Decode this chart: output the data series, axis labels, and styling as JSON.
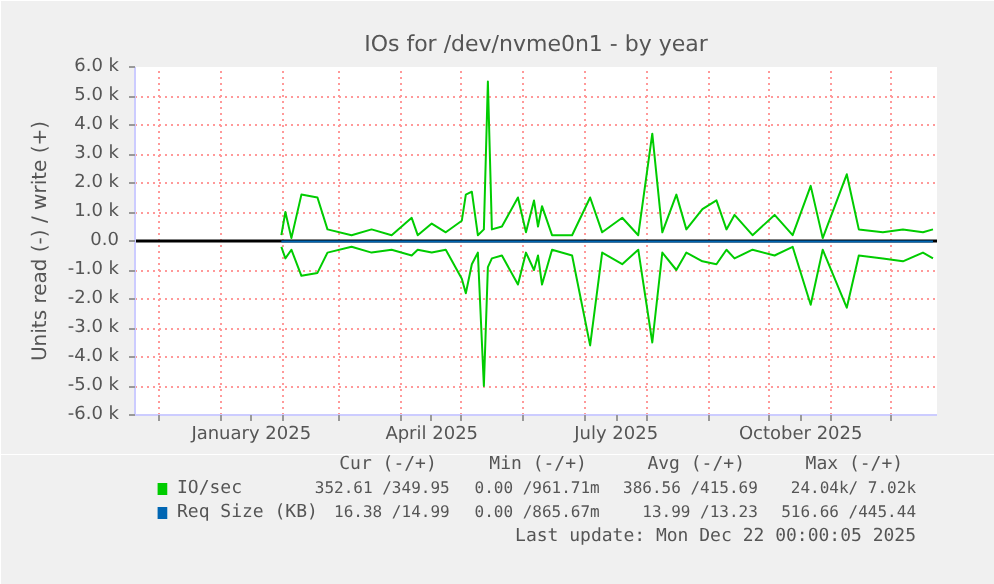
{
  "chart_data": {
    "type": "line",
    "title": "IOs for /dev/nvme0n1 - by year",
    "ylabel": "Units read (-) / write (+)",
    "xlim": [
      "2024-11-19",
      "2025-12-24"
    ],
    "xticks": [
      {
        "value": "2024-12-01",
        "label": null
      },
      {
        "value": "2025-01-01",
        "label": null
      },
      {
        "value": "2025-02-01",
        "label": null
      },
      {
        "value": "2025-03-01",
        "label": null
      },
      {
        "value": "2025-04-01",
        "label": null
      },
      {
        "value": "2025-05-01",
        "label": null
      },
      {
        "value": "2025-06-01",
        "label": null
      },
      {
        "value": "2025-07-01",
        "label": null
      },
      {
        "value": "2025-08-01",
        "label": null
      },
      {
        "value": "2025-09-01",
        "label": null
      },
      {
        "value": "2025-10-01",
        "label": null
      },
      {
        "value": "2025-11-01",
        "label": null
      },
      {
        "value": "2025-12-01",
        "label": null
      },
      {
        "value": "2025-01-16",
        "label": "January 2025"
      },
      {
        "value": "2025-04-16",
        "label": "April 2025"
      },
      {
        "value": "2025-07-17",
        "label": "July 2025"
      },
      {
        "value": "2025-10-17",
        "label": "October 2025"
      }
    ],
    "ylim": [
      -6000,
      6000
    ],
    "yticks": [
      {
        "value": -6000,
        "label": "-6.0 k"
      },
      {
        "value": -5000,
        "label": "-5.0 k"
      },
      {
        "value": -4000,
        "label": "-4.0 k"
      },
      {
        "value": -3000,
        "label": "-3.0 k"
      },
      {
        "value": -2000,
        "label": "-2.0 k"
      },
      {
        "value": -1000,
        "label": "-1.0 k"
      },
      {
        "value": 0,
        "label": "0.0"
      },
      {
        "value": 1000,
        "label": "1.0 k"
      },
      {
        "value": 2000,
        "label": "2.0 k"
      },
      {
        "value": 3000,
        "label": "3.0 k"
      },
      {
        "value": 4000,
        "label": "4.0 k"
      },
      {
        "value": 5000,
        "label": "5.0 k"
      },
      {
        "value": 6000,
        "label": "6.0 k"
      }
    ],
    "grid": true,
    "legend": "bottom",
    "series": [
      {
        "name": "IO/sec",
        "color": "#00cc00",
        "x": [
          "2025-01-31",
          "2025-02-02",
          "2025-02-05",
          "2025-02-10",
          "2025-02-18",
          "2025-02-23",
          "2025-03-07",
          "2025-03-17",
          "2025-03-27",
          "2025-04-06",
          "2025-04-09",
          "2025-04-16",
          "2025-04-23",
          "2025-05-01",
          "2025-05-03",
          "2025-05-06",
          "2025-05-09",
          "2025-05-12",
          "2025-05-14",
          "2025-05-16",
          "2025-05-21",
          "2025-05-29",
          "2025-06-02",
          "2025-06-06",
          "2025-06-08",
          "2025-06-10",
          "2025-06-15",
          "2025-06-25",
          "2025-07-04",
          "2025-07-10",
          "2025-07-20",
          "2025-07-28",
          "2025-08-04",
          "2025-08-09",
          "2025-08-16",
          "2025-08-21",
          "2025-08-29",
          "2025-09-05",
          "2025-09-10",
          "2025-09-14",
          "2025-09-23",
          "2025-10-04",
          "2025-10-13",
          "2025-10-22",
          "2025-10-28",
          "2025-11-09",
          "2025-11-15",
          "2025-11-27",
          "2025-12-07",
          "2025-12-17",
          "2025-12-22"
        ],
        "values": [
          200,
          1000,
          100,
          1600,
          1500,
          400,
          200,
          400,
          200,
          800,
          200,
          600,
          300,
          700,
          1600,
          1700,
          200,
          400,
          5500,
          400,
          500,
          1500,
          300,
          1400,
          500,
          1200,
          200,
          200,
          1500,
          300,
          800,
          200,
          3700,
          300,
          1600,
          400,
          1100,
          1400,
          400,
          900,
          200,
          900,
          200,
          1900,
          100,
          2300,
          400,
          300,
          400,
          300,
          400
        ]
      },
      {
        "color": "#00cc00",
        "x": [
          "2025-01-31",
          "2025-02-02",
          "2025-02-05",
          "2025-02-10",
          "2025-02-18",
          "2025-02-23",
          "2025-03-07",
          "2025-03-17",
          "2025-03-27",
          "2025-04-06",
          "2025-04-09",
          "2025-04-16",
          "2025-04-23",
          "2025-05-01",
          "2025-05-03",
          "2025-05-06",
          "2025-05-09",
          "2025-05-12",
          "2025-05-14",
          "2025-05-16",
          "2025-05-21",
          "2025-05-29",
          "2025-06-02",
          "2025-06-06",
          "2025-06-08",
          "2025-06-10",
          "2025-06-15",
          "2025-06-25",
          "2025-07-04",
          "2025-07-10",
          "2025-07-20",
          "2025-07-28",
          "2025-08-04",
          "2025-08-09",
          "2025-08-16",
          "2025-08-21",
          "2025-08-29",
          "2025-09-05",
          "2025-09-10",
          "2025-09-14",
          "2025-09-23",
          "2025-10-04",
          "2025-10-13",
          "2025-10-22",
          "2025-10-28",
          "2025-11-09",
          "2025-11-15",
          "2025-11-27",
          "2025-12-07",
          "2025-12-17",
          "2025-12-22"
        ],
        "values": [
          -200,
          -600,
          -300,
          -1200,
          -1100,
          -400,
          -200,
          -400,
          -300,
          -500,
          -300,
          -400,
          -300,
          -1300,
          -1800,
          -800,
          -400,
          -5000,
          -900,
          -600,
          -500,
          -1500,
          -400,
          -1000,
          -500,
          -1500,
          -300,
          -500,
          -3600,
          -400,
          -800,
          -300,
          -3500,
          -400,
          -1000,
          -400,
          -700,
          -800,
          -300,
          -600,
          -300,
          -500,
          -200,
          -2200,
          -300,
          -2300,
          -500,
          -600,
          -700,
          -400,
          -600
        ]
      },
      {
        "name": "Req Size (KB)",
        "color": "#0066b3",
        "x": [
          "2025-01-31",
          "2025-12-22"
        ],
        "values": [
          -15,
          -15
        ]
      }
    ],
    "ref_lines": [
      {
        "axis": "y",
        "value": 0,
        "color": "#000000"
      }
    ],
    "annotations": [
      "Cur (-/+)",
      "Min (-/+)",
      "Avg (-/+)",
      "Max (-/+)",
      "352.61 /349.95",
      "0.00 /961.71m",
      "386.56 /415.69",
      "24.04k/ 7.02k",
      "16.38 /14.99",
      "0.00 /865.67m",
      "13.99 /13.23",
      "516.66 /445.44",
      "Last update: Mon Dec 22 00:00:05 2025"
    ]
  }
}
